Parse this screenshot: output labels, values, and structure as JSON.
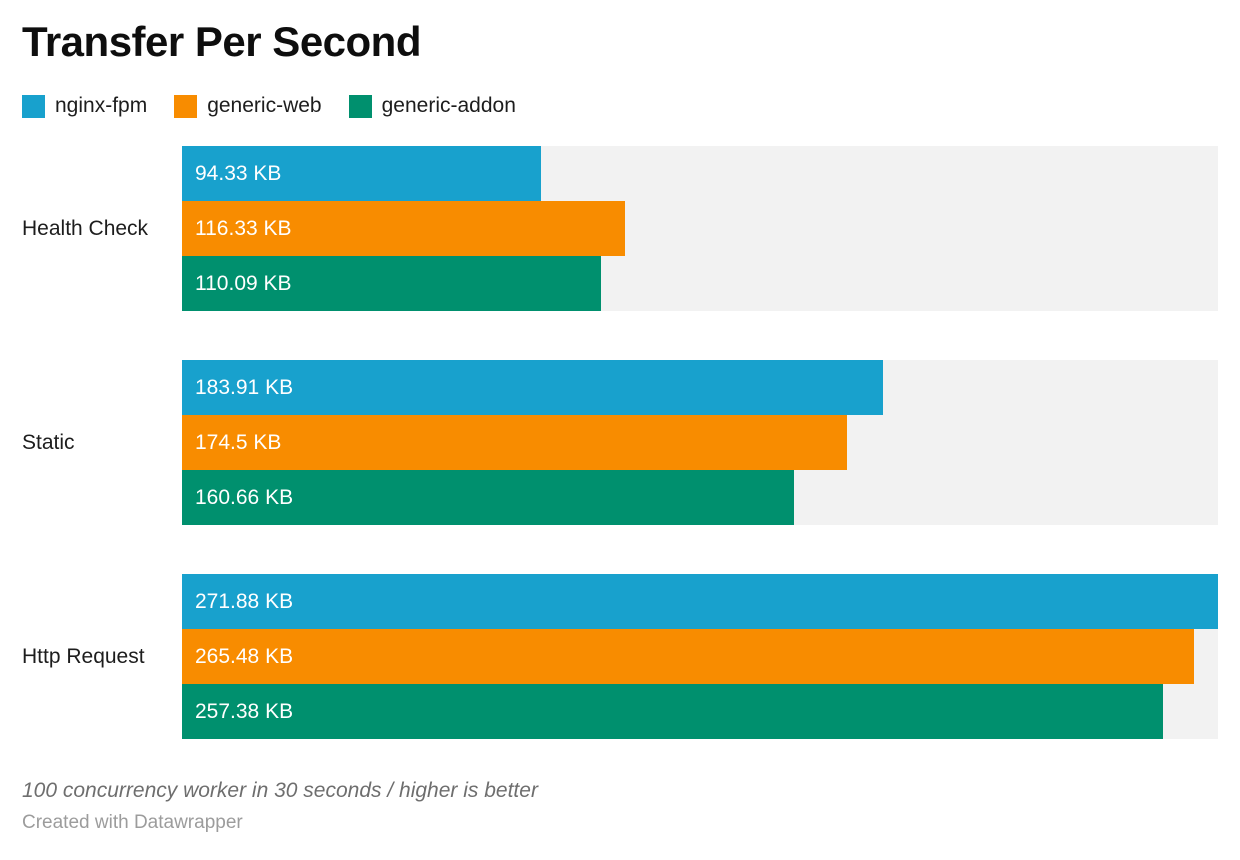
{
  "title": "Transfer Per Second",
  "legend": [
    {
      "label": "nginx-fpm",
      "color": "#18a1cd"
    },
    {
      "label": "generic-web",
      "color": "#f88c00"
    },
    {
      "label": "generic-addon",
      "color": "#00906e"
    }
  ],
  "chart_data": {
    "type": "bar",
    "orientation": "horizontal",
    "title": "Transfer Per Second",
    "categories": [
      "Health Check",
      "Static",
      "Http Request"
    ],
    "series": [
      {
        "name": "nginx-fpm",
        "color": "#18a1cd",
        "values": [
          94.33,
          183.91,
          271.88
        ],
        "labels": [
          "94.33 KB",
          "183.91 KB",
          "271.88 KB"
        ]
      },
      {
        "name": "generic-web",
        "color": "#f88c00",
        "values": [
          116.33,
          174.5,
          265.48
        ],
        "labels": [
          "116.33 KB",
          "174.5 KB",
          "265.48 KB"
        ]
      },
      {
        "name": "generic-addon",
        "color": "#00906e",
        "values": [
          110.09,
          160.66,
          257.38
        ],
        "labels": [
          "110.09 KB",
          "160.66 KB",
          "257.38 KB"
        ]
      }
    ],
    "unit": "KB",
    "xlim": [
      0,
      271.88
    ],
    "grid": false,
    "legend_position": "top-left",
    "track_color": "#f2f2f2",
    "value_labels_inside": true
  },
  "footer": {
    "note": "100 concurrency worker in 30 seconds / higher is better",
    "credit": "Created with Datawrapper"
  }
}
